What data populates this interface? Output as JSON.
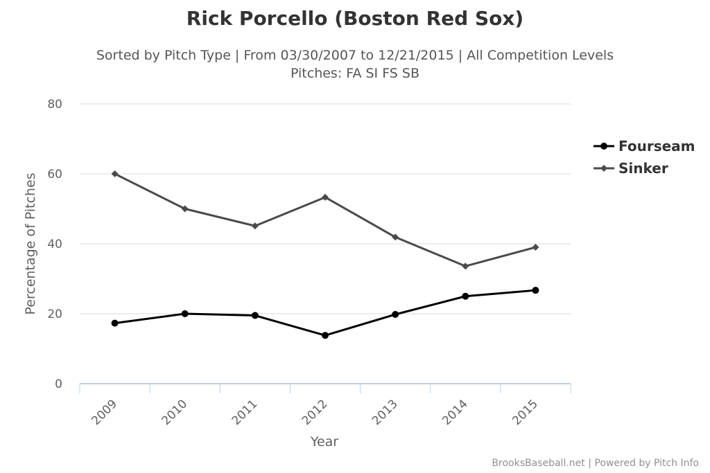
{
  "header": {
    "title": "Rick Porcello (Boston Red Sox)",
    "subtitle_line1": "Sorted by Pitch Type | From 03/30/2007 to 12/21/2015 | All Competition Levels",
    "subtitle_line2": "Pitches: FA SI FS SB"
  },
  "credits": "BrooksBaseball.net | Powered by Pitch Info",
  "chart_data": {
    "type": "line",
    "title": "Rick Porcello (Boston Red Sox)",
    "xlabel": "Year",
    "ylabel": "Percentage of Pitches",
    "categories": [
      "2009",
      "2010",
      "2011",
      "2012",
      "2013",
      "2014",
      "2015"
    ],
    "ylim": [
      0,
      80
    ],
    "yticks": [
      "0",
      "20",
      "40",
      "60",
      "80"
    ],
    "grid": true,
    "legend_position": "right",
    "series": [
      {
        "name": "Fourseam",
        "values": [
          17.3,
          20.0,
          19.5,
          13.8,
          19.8,
          25.0,
          26.7
        ],
        "color": "#000000",
        "marker": "circle"
      },
      {
        "name": "Sinker",
        "values": [
          60.0,
          50.0,
          45.1,
          53.3,
          41.9,
          33.6,
          39.0
        ],
        "color": "#4a4a4a",
        "marker": "diamond"
      }
    ]
  }
}
